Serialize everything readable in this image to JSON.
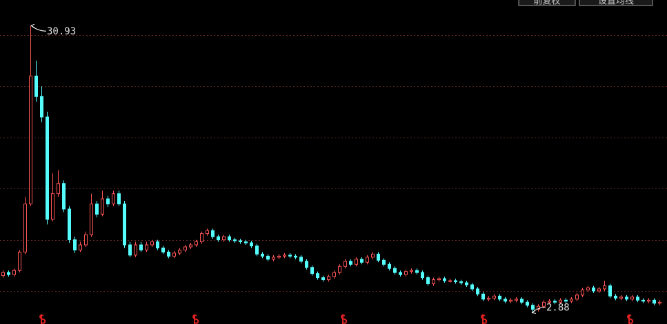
{
  "toolbar": {
    "buttons": [
      "前复权",
      "设置均线"
    ]
  },
  "chart_data": {
    "type": "candlestick",
    "up_color": "#ff5555",
    "down_color": "#54fcfc",
    "ylim": [
      1.77,
      33.43
    ],
    "yticks": [
      5,
      10,
      15,
      20,
      25,
      30
    ],
    "grid": true,
    "open": [
      6.5,
      6.8,
      6.6,
      7.0,
      8.8,
      13.5,
      26,
      24,
      22,
      12,
      14.5,
      15.5,
      13,
      10,
      9,
      9.5,
      10.5,
      13.5,
      12.5,
      14,
      13.5,
      14.5,
      13.5,
      9.5,
      8.5,
      9.5,
      9,
      9.5,
      9.8,
      9.2,
      8.8,
      8.4,
      8.7,
      9.0,
      9.3,
      9.5,
      9.8,
      10.6,
      10.9,
      10.3,
      10.0,
      10.3,
      10.0,
      9.9,
      9.8,
      9.7,
      9.4,
      8.6,
      8.4,
      8.1,
      8.3,
      8.4,
      8.5,
      8.4,
      8.3,
      7.9,
      7.3,
      6.7,
      6.3,
      6.1,
      6.4,
      6.8,
      7.4,
      7.9,
      7.6,
      8.1,
      7.8,
      8.3,
      8.6,
      8.0,
      7.6,
      7.2,
      6.8,
      6.6,
      6.9,
      7.0,
      6.8,
      6.3,
      5.7,
      6.1,
      6.2,
      6.0,
      6.0,
      5.9,
      5.8,
      5.6,
      5.2,
      4.7,
      4.2,
      4.3,
      4.5,
      4.2,
      4.0,
      4.1,
      4.2,
      3.9,
      3.6,
      3.2,
      3.5,
      3.9,
      4.0,
      3.9,
      4.1,
      4.0,
      4.2,
      4.6,
      5.1,
      5.3,
      5.0,
      5.2,
      5.5,
      4.5,
      4.3,
      4.4,
      4.2,
      4.4,
      4.1,
      4.0,
      4.1,
      3.8
    ],
    "high": [
      7.0,
      7.0,
      7.2,
      9.0,
      14.2,
      30.93,
      27.5,
      25,
      22.5,
      16.5,
      16.8,
      15.8,
      13.3,
      10.3,
      9.8,
      10.8,
      14.5,
      13.8,
      14.8,
      14.3,
      14.8,
      14.8,
      13.8,
      9.8,
      9.8,
      9.8,
      9.8,
      10.0,
      10.0,
      9.4,
      9.0,
      8.9,
      9.2,
      9.5,
      9.7,
      10.0,
      10.8,
      11.1,
      11.1,
      10.5,
      10.5,
      10.5,
      10.2,
      10.1,
      10.0,
      9.9,
      9.6,
      8.8,
      8.6,
      8.5,
      8.6,
      8.7,
      8.7,
      8.6,
      8.5,
      8.1,
      7.5,
      6.9,
      6.5,
      6.6,
      7.0,
      7.6,
      8.1,
      8.1,
      8.3,
      8.3,
      8.5,
      8.8,
      8.8,
      8.2,
      7.8,
      7.4,
      7.0,
      7.1,
      7.2,
      7.2,
      7.0,
      6.5,
      6.3,
      6.4,
      6.4,
      6.2,
      6.2,
      6.1,
      6.0,
      5.8,
      5.4,
      4.9,
      4.5,
      4.7,
      4.7,
      4.4,
      4.3,
      4.4,
      4.4,
      4.1,
      3.8,
      3.7,
      4.1,
      4.2,
      4.2,
      4.3,
      4.3,
      4.4,
      4.8,
      5.3,
      5.5,
      5.5,
      5.4,
      6.0,
      5.7,
      4.7,
      4.6,
      4.6,
      4.6,
      4.6,
      4.3,
      4.3,
      4.3,
      4.1
    ],
    "low": [
      6.3,
      6.4,
      6.4,
      6.8,
      8.6,
      13.3,
      23.5,
      21.5,
      11.5,
      11.8,
      14.2,
      12.7,
      9.7,
      8.7,
      8.8,
      9.3,
      10.3,
      12.2,
      12.3,
      13.2,
      13.3,
      13.3,
      9.2,
      8.3,
      8.3,
      8.8,
      8.8,
      9.3,
      9.0,
      8.6,
      8.2,
      8.2,
      8.5,
      8.8,
      9.1,
      9.3,
      9.6,
      10.4,
      10.1,
      9.8,
      9.8,
      9.8,
      9.7,
      9.6,
      9.5,
      9.2,
      8.4,
      8.2,
      7.9,
      7.9,
      8.1,
      8.2,
      8.2,
      8.1,
      7.7,
      7.1,
      6.5,
      6.1,
      5.9,
      5.9,
      6.2,
      6.6,
      7.2,
      7.4,
      7.4,
      7.6,
      7.6,
      8.1,
      7.8,
      7.4,
      7.0,
      6.6,
      6.4,
      6.4,
      6.7,
      6.6,
      6.1,
      5.5,
      5.5,
      5.9,
      5.8,
      5.8,
      5.7,
      5.6,
      5.4,
      5.0,
      4.5,
      4.0,
      4.0,
      4.1,
      4.0,
      3.8,
      3.8,
      3.9,
      3.7,
      3.4,
      2.88,
      3.0,
      3.3,
      3.7,
      3.7,
      3.7,
      3.8,
      3.8,
      4.0,
      4.4,
      4.9,
      4.8,
      4.8,
      5.0,
      4.3,
      4.1,
      4.1,
      4.0,
      4.0,
      3.9,
      3.8,
      3.8,
      3.6,
      3.6
    ],
    "close": [
      6.8,
      6.6,
      7.0,
      8.8,
      13.5,
      26,
      24,
      22,
      12,
      14.5,
      15.5,
      13,
      10,
      9,
      9.5,
      10.5,
      13.5,
      12.5,
      14,
      13.5,
      14.5,
      13.5,
      9.5,
      8.5,
      9.5,
      9,
      9.5,
      9.8,
      9.2,
      8.8,
      8.4,
      8.7,
      9.0,
      9.3,
      9.5,
      9.8,
      10.6,
      10.9,
      10.3,
      10.0,
      10.3,
      10.0,
      9.9,
      9.8,
      9.7,
      9.4,
      8.6,
      8.4,
      8.1,
      8.3,
      8.4,
      8.5,
      8.4,
      8.3,
      7.9,
      7.3,
      6.7,
      6.3,
      6.1,
      6.4,
      6.8,
      7.4,
      7.9,
      7.6,
      8.1,
      7.8,
      8.3,
      8.6,
      8.0,
      7.6,
      7.2,
      6.8,
      6.6,
      6.9,
      7.0,
      6.8,
      6.3,
      5.7,
      6.1,
      6.2,
      6.0,
      6.0,
      5.9,
      5.8,
      5.6,
      5.2,
      4.7,
      4.2,
      4.3,
      4.5,
      4.2,
      4.0,
      4.1,
      4.2,
      3.9,
      3.6,
      3.2,
      3.5,
      3.9,
      4.0,
      3.9,
      4.1,
      4.0,
      4.2,
      4.6,
      5.1,
      5.3,
      5.0,
      5.2,
      5.5,
      4.5,
      4.3,
      4.4,
      4.2,
      4.4,
      4.1,
      4.0,
      4.1,
      3.8,
      3.9
    ]
  }
}
